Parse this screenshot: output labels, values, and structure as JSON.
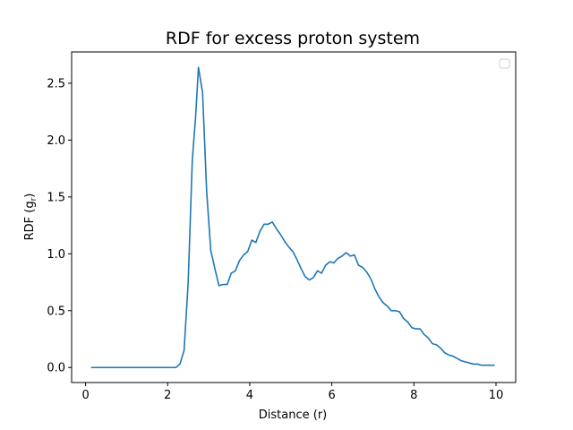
{
  "chart_data": {
    "type": "line",
    "title": "RDF for excess proton system",
    "xlabel": "Distance (r)",
    "ylabel": "RDF (g",
    "ylabel_subscript": "r",
    "ylabel_suffix": ")",
    "xlim": [
      -0.34,
      10.48
    ],
    "ylim": [
      -0.132,
      2.775
    ],
    "xticks": [
      0,
      2,
      4,
      6,
      8,
      10
    ],
    "yticks": [
      0.0,
      0.5,
      1.0,
      1.5,
      2.0,
      2.5
    ],
    "xtick_labels": [
      "0",
      "2",
      "4",
      "6",
      "8",
      "10"
    ],
    "ytick_labels": [
      "0.0",
      "0.5",
      "1.0",
      "1.5",
      "2.0",
      "2.5"
    ],
    "grid": false,
    "legend": {
      "placement": "top-right",
      "entries": []
    },
    "line_color": "#1f77b4",
    "series": [
      {
        "x": [
          0.15,
          0.5,
          1.0,
          1.5,
          2.0,
          2.2,
          2.3,
          2.4,
          2.5,
          2.6,
          2.68,
          2.75,
          2.85,
          2.95,
          3.05,
          3.15,
          3.25,
          3.35,
          3.45,
          3.55,
          3.65,
          3.75,
          3.85,
          3.95,
          4.05,
          4.15,
          4.25,
          4.35,
          4.45,
          4.55,
          4.65,
          4.75,
          4.85,
          4.95,
          5.05,
          5.15,
          5.25,
          5.35,
          5.45,
          5.55,
          5.65,
          5.75,
          5.85,
          5.95,
          6.05,
          6.15,
          6.25,
          6.35,
          6.45,
          6.55,
          6.65,
          6.75,
          6.85,
          6.95,
          7.05,
          7.15,
          7.25,
          7.35,
          7.45,
          7.55,
          7.65,
          7.75,
          7.85,
          7.95,
          8.05,
          8.15,
          8.25,
          8.35,
          8.45,
          8.55,
          8.65,
          8.75,
          8.85,
          8.95,
          9.05,
          9.15,
          9.25,
          9.35,
          9.45,
          9.55,
          9.65,
          9.75,
          9.85,
          9.95
        ],
        "y": [
          0.0,
          0.0,
          0.0,
          0.0,
          0.0,
          0.0,
          0.03,
          0.15,
          0.75,
          1.82,
          2.2,
          2.64,
          2.42,
          1.55,
          1.03,
          0.87,
          0.72,
          0.73,
          0.73,
          0.83,
          0.85,
          0.94,
          0.99,
          1.02,
          1.12,
          1.1,
          1.2,
          1.26,
          1.26,
          1.28,
          1.22,
          1.17,
          1.11,
          1.06,
          1.02,
          0.95,
          0.87,
          0.8,
          0.77,
          0.79,
          0.85,
          0.83,
          0.9,
          0.93,
          0.92,
          0.96,
          0.98,
          1.01,
          0.98,
          0.99,
          0.9,
          0.88,
          0.84,
          0.78,
          0.69,
          0.62,
          0.57,
          0.54,
          0.5,
          0.5,
          0.49,
          0.43,
          0.4,
          0.35,
          0.34,
          0.34,
          0.29,
          0.26,
          0.21,
          0.2,
          0.17,
          0.13,
          0.11,
          0.1,
          0.08,
          0.06,
          0.05,
          0.04,
          0.03,
          0.03,
          0.02,
          0.02,
          0.02,
          0.02
        ]
      }
    ]
  }
}
